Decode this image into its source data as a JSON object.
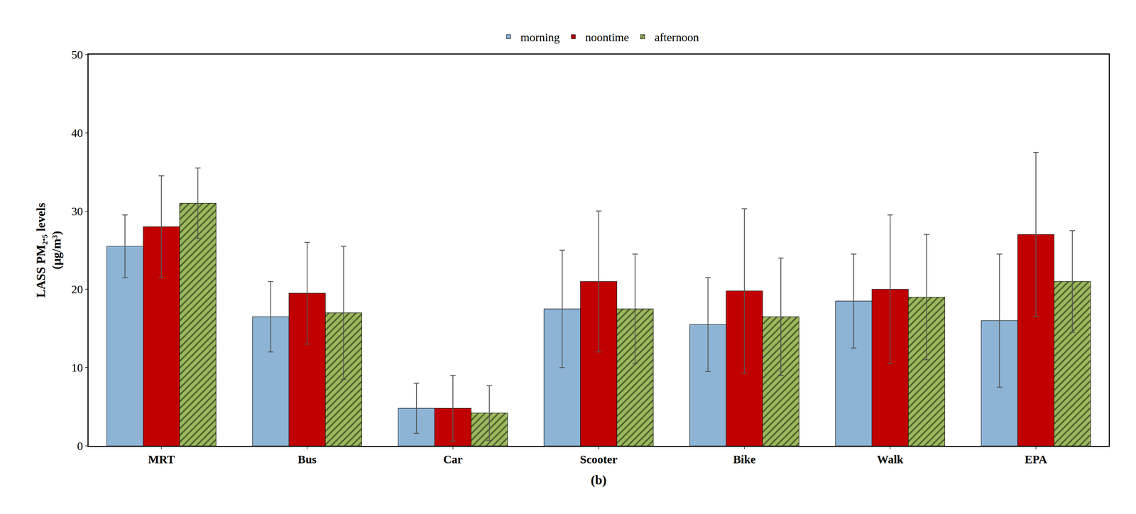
{
  "chart_data": {
    "type": "bar",
    "categories": [
      "MRT",
      "Bus",
      "Car",
      "Scooter",
      "Bike",
      "Walk",
      "EPA"
    ],
    "series": [
      {
        "name": "morning",
        "color": "#8DB4D5",
        "values": [
          25.5,
          16.5,
          4.8,
          17.5,
          15.5,
          18.5,
          16.0
        ],
        "error": [
          4.0,
          4.5,
          3.2,
          7.5,
          6.0,
          6.0,
          8.5
        ]
      },
      {
        "name": "noontime",
        "color": "#C00000",
        "values": [
          28.0,
          19.5,
          4.8,
          21.0,
          19.8,
          20.0,
          27.0
        ],
        "error": [
          6.5,
          6.5,
          4.2,
          9.0,
          10.5,
          9.5,
          10.5
        ]
      },
      {
        "name": "afternoon",
        "color": "#9BB85C",
        "marker": "hatched",
        "values": [
          31.0,
          17.0,
          4.2,
          17.5,
          16.5,
          19.0,
          21.0
        ],
        "error": [
          4.5,
          8.5,
          3.5,
          7.0,
          7.5,
          8.0,
          6.5
        ]
      }
    ],
    "ylabel": "LASS PM₂.₅ levels\n(μg/m³)",
    "xlabel": "(b)",
    "ylim": [
      0,
      50
    ],
    "yticks": [
      0,
      10,
      20,
      30,
      40,
      50
    ],
    "grid": false,
    "legend": "top"
  }
}
